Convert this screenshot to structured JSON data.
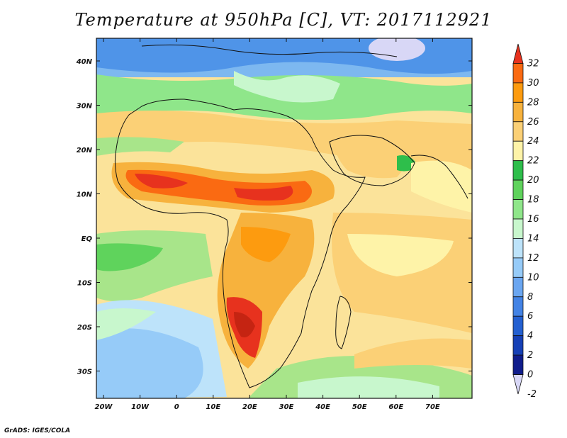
{
  "title": "Temperature at 950hPa [C], VT: 2017112921",
  "credit": "GrADS: IGES/COLA",
  "map": {
    "lon_range": [
      -23,
      80
    ],
    "lat_range": [
      -37,
      46
    ],
    "y_ticks": [
      "40N",
      "30N",
      "20N",
      "10N",
      "EQ",
      "10S",
      "20S",
      "30S"
    ],
    "x_ticks": [
      "20W",
      "10W",
      "0",
      "10E",
      "20E",
      "30E",
      "40E",
      "50E",
      "60E",
      "70E"
    ]
  },
  "colorbar": {
    "labels": [
      "32",
      "30",
      "28",
      "26",
      "24",
      "22",
      "20",
      "18",
      "16",
      "14",
      "12",
      "10",
      "8",
      "6",
      "4",
      "2",
      "0",
      "-2"
    ],
    "colors_top_to_bottom": [
      "#e7321e",
      "#fa6a12",
      "#fd9b0f",
      "#f7b23d",
      "#fbd076",
      "#fef3a8",
      "#2ebe4b",
      "#5fd35c",
      "#8fe68a",
      "#c8f7cd",
      "#bde3fa",
      "#96cbf8",
      "#6aa6f1",
      "#4383e5",
      "#2460d1",
      "#1640b6",
      "#101d8c",
      "#d8d7f6"
    ]
  }
}
